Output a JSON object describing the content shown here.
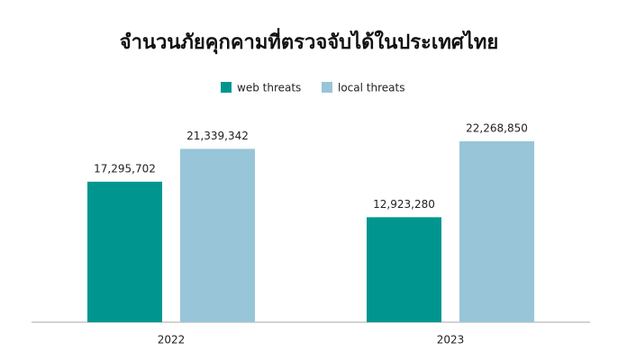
{
  "chart_data": {
    "type": "bar",
    "title": "จำนวนภัยคุกคามที่ตรวจจับได้ในประเทศไทย",
    "categories": [
      "2022",
      "2023"
    ],
    "series": [
      {
        "name": "web threats",
        "color": "#00968f",
        "values": [
          17295702,
          12923280
        ],
        "value_labels": [
          "17,295,702",
          "12,923,280"
        ]
      },
      {
        "name": "local threats",
        "color": "#98c5d8",
        "values": [
          21339342,
          22268850
        ],
        "value_labels": [
          "21,339,342",
          "22,268,850"
        ]
      }
    ],
    "legend": "top"
  }
}
